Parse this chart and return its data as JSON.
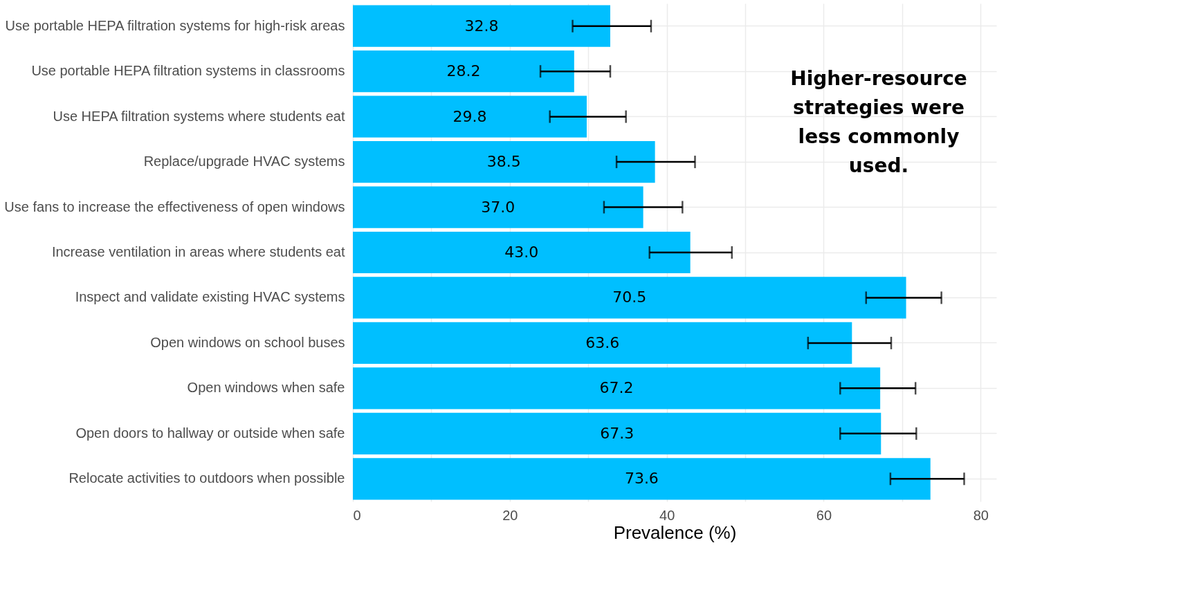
{
  "chart_data": {
    "type": "bar",
    "orientation": "horizontal",
    "xlabel": "Prevalence (%)",
    "categories": [
      "Use portable HEPA filtration systems for high-risk areas",
      "Use portable HEPA filtration systems in classrooms",
      "Use HEPA filtration systems where students eat",
      "Replace/upgrade HVAC systems",
      "Use fans to increase the effectiveness of open windows",
      "Increase ventilation in areas where students eat",
      "Inspect and validate existing HVAC systems",
      "Open windows on school buses",
      "Open windows when safe",
      "Open doors to hallway or outside when safe",
      "Relocate activities to outdoors when possible"
    ],
    "values": [
      32.8,
      28.2,
      29.8,
      38.5,
      37.0,
      43.0,
      70.5,
      63.6,
      67.2,
      67.3,
      73.6
    ],
    "value_labels": [
      "32.8",
      "28.2",
      "29.8",
      "38.5",
      "37.0",
      "43.0",
      "70.5",
      "63.6",
      "67.2",
      "67.3",
      "73.6"
    ],
    "errors": [
      [
        28.0,
        38.0
      ],
      [
        23.9,
        32.8
      ],
      [
        25.1,
        34.8
      ],
      [
        33.6,
        43.6
      ],
      [
        32.0,
        42.0
      ],
      [
        37.8,
        48.3
      ],
      [
        65.4,
        75.0
      ],
      [
        58.0,
        68.6
      ],
      [
        62.1,
        71.7
      ],
      [
        62.1,
        71.8
      ],
      [
        68.5,
        77.9
      ]
    ],
    "color": "#00bfff",
    "xlim": [
      0,
      82
    ],
    "xticks": [
      0,
      {
        "value": 10,
        "label": null
      },
      20,
      {
        "value": 30,
        "label": null
      },
      40,
      {
        "value": 50,
        "label": null
      },
      60,
      {
        "value": 70,
        "label": null
      },
      80
    ],
    "grid": true,
    "annotations": [
      "Higher-resource strategies were less commonly used."
    ]
  }
}
